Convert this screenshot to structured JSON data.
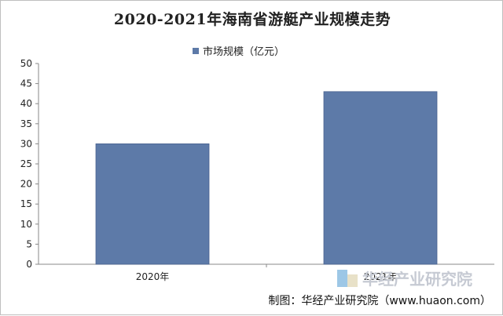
{
  "chart_data": {
    "type": "bar",
    "title": "2020-2021年海南省游艇产业规模走势",
    "categories": [
      "2020年",
      "2021年"
    ],
    "series": [
      {
        "name": "市场规模（亿元）",
        "values": [
          30,
          43
        ],
        "color": "#5d7aa8"
      }
    ],
    "ylim": [
      0,
      50
    ],
    "yticks": [
      0,
      5,
      10,
      15,
      20,
      25,
      30,
      35,
      40,
      45,
      50
    ],
    "grid": false,
    "legend_position": "top"
  },
  "watermark_text": "华经产业研究院",
  "credit": "制图：华经产业研究院（www.huaon.com）"
}
